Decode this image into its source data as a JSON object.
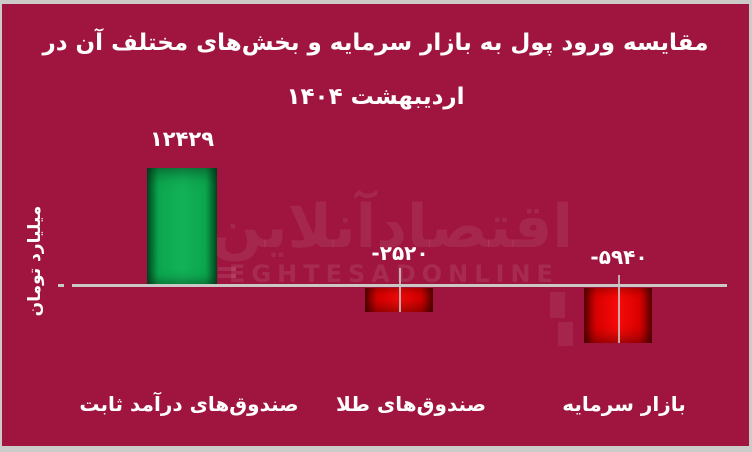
{
  "colors": {
    "background": "#9F153F",
    "border": "#CCCBCA",
    "axis": "#CAC7C7",
    "positive_bar": "#12B158",
    "negative_bar": "#F70A0A",
    "text": "#FFFFFF"
  },
  "title": {
    "line1": "مقایسه ورود پول به بازار سرمایه و بخش‌های مختلف آن در",
    "line2": "اردیبهشت ۱۴۰۴"
  },
  "y_axis": {
    "label": "میلیارد تومان"
  },
  "watermark": {
    "farsi": "اقتصادآنلاین",
    "latin": "EGHTESADONLINE"
  },
  "chart_data": {
    "type": "bar",
    "title": "مقایسه ورود پول به بازار سرمایه و بخش‌های مختلف آن در اردیبهشت ۱۴۰۴",
    "ylabel": "میلیارد تومان",
    "baseline": 0,
    "grid": false,
    "legend": false,
    "categories": [
      "صندوق‌های درآمد ثابت",
      "صندوق‌های طلا",
      "بازار سرمایه"
    ],
    "values": [
      12429,
      -2520,
      -5940
    ],
    "bars": [
      {
        "category": "صندوق‌های درآمد ثابت",
        "value": 12429,
        "value_label": "۱۲۴۲۹",
        "color": "#12B158"
      },
      {
        "category": "صندوق‌های طلا",
        "value": -2520,
        "value_label": "-۲۵۲۰",
        "color": "#F70A0A"
      },
      {
        "category": "بازار سرمایه",
        "value": -5940,
        "value_label": "-۵۹۴۰",
        "color": "#F70A0A"
      }
    ]
  }
}
